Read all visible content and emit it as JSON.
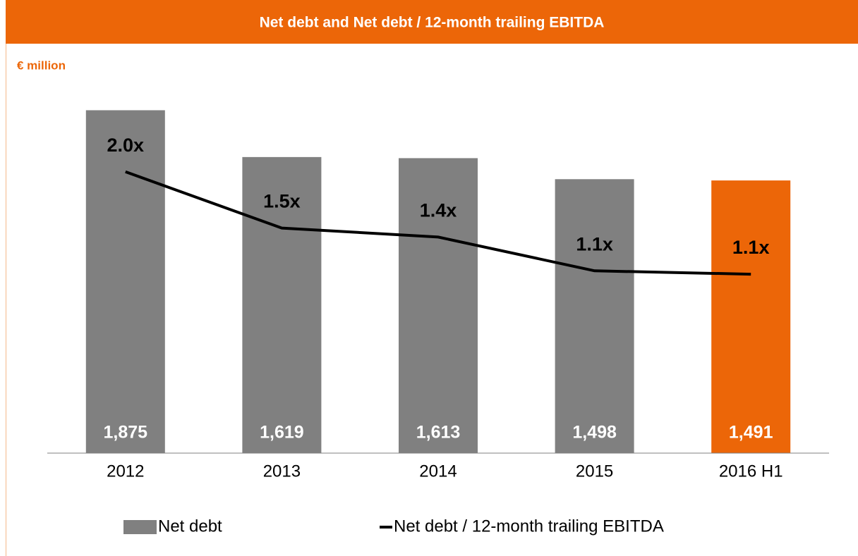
{
  "chart_data": {
    "type": "bar",
    "title": "Net debt and Net debt / 12-month trailing EBITDA",
    "subtitle": "€ million",
    "categories": [
      "2012",
      "2013",
      "2014",
      "2015",
      "2016 H1"
    ],
    "series": [
      {
        "name": "Net debt",
        "type": "bar",
        "color": "#808080",
        "colors": [
          "#808080",
          "#808080",
          "#808080",
          "#808080",
          "#ec6608"
        ],
        "values": [
          1875,
          1619,
          1613,
          1498,
          1491
        ],
        "value_labels": [
          "1,875",
          "1,619",
          "1,613",
          "1,498",
          "1,491"
        ]
      },
      {
        "name": "Net debt / 12-month trailing EBITDA",
        "type": "line",
        "axis": "y2",
        "color": "#000000",
        "values": [
          2.0,
          1.5,
          1.42,
          1.12,
          1.09
        ],
        "value_labels": [
          "2.0x",
          "1.5x",
          "1.4x",
          "1.1x",
          "1.1x"
        ]
      }
    ],
    "ylim": [
      0,
      2000
    ],
    "y2lim": [
      -0.5,
      2.75
    ]
  }
}
